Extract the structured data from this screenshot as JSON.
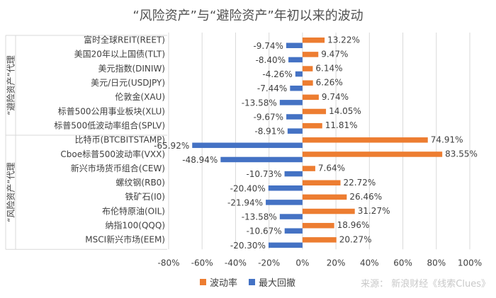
{
  "title": "“风险资产”与“避险资产”年初以来的波动",
  "source": "来源： 新浪财经《线索Clues》",
  "colors": {
    "volatility": "#ED7D31",
    "drawdown": "#4472C4",
    "grid": "#d9d9d9"
  },
  "chart_data": {
    "type": "bar",
    "orientation": "horizontal",
    "groups": [
      {
        "label": "“避险资产”代理",
        "categories": [
          "富时全球REIT(REET)",
          "美国20年以上国债(TLT)",
          "美元指数(DINIW)",
          "美元/日元(USDJPY)",
          "伦敦金(XAU)",
          "标普500公用事业板块(XLU)",
          "标普500低波动率组合(SPLV)"
        ]
      },
      {
        "label": "“风险资产”代理",
        "categories": [
          "比特币(BTCBITSTAMP)",
          "Cboe标普500波动率(VXX)",
          "新兴市场货币组合(CEW)",
          "螺纹钢(RB0)",
          "铁矿石(I0)",
          "布伦特原油(OIL)",
          "纳指100(QQQ)",
          "MSCI新兴市场(EEM)"
        ]
      }
    ],
    "categories": [
      "富时全球REIT(REET)",
      "美国20年以上国债(TLT)",
      "美元指数(DINIW)",
      "美元/日元(USDJPY)",
      "伦敦金(XAU)",
      "标普500公用事业板块(XLU)",
      "标普500低波动率组合(SPLV)",
      "比特币(BTCBITSTAMP)",
      "Cboe标普500波动率(VXX)",
      "新兴市场货币组合(CEW)",
      "螺纹钢(RB0)",
      "铁矿石(I0)",
      "布伦特原油(OIL)",
      "纳指100(QQQ)",
      "MSCI新兴市场(EEM)"
    ],
    "series": [
      {
        "name": "波动率",
        "values": [
          13.22,
          9.47,
          6.14,
          6.26,
          9.74,
          14.05,
          11.81,
          74.91,
          83.55,
          7.64,
          22.72,
          26.46,
          31.27,
          18.96,
          20.27
        ],
        "labels": [
          "13.22%",
          "9.47%",
          "6.14%",
          "6.26%",
          "9.74%",
          "14.05%",
          "11.81%",
          "74.91%",
          "83.55%",
          "7.64%",
          "22.72%",
          "26.46%",
          "31.27%",
          "18.96%",
          "20.27%"
        ]
      },
      {
        "name": "最大回撤",
        "values": [
          -9.74,
          -8.4,
          -4.26,
          -7.44,
          -13.58,
          -9.67,
          -8.91,
          -65.92,
          -48.94,
          -10.73,
          -20.4,
          -21.94,
          -13.58,
          -10.67,
          -20.3
        ],
        "labels": [
          "-9.74%",
          "-8.40%",
          "-4.26%",
          "-7.44%",
          "-13.58%",
          "-9.67%",
          "-8.91%",
          "-65.92%",
          "-48.94%",
          "-10.73%",
          "-20.40%",
          "-21.94%",
          "-13.58%",
          "-10.67%",
          "-20.30%"
        ]
      }
    ],
    "xlim": [
      -80,
      100
    ],
    "xticks": [
      -80,
      -60,
      -40,
      -20,
      0,
      20,
      40,
      60,
      80,
      100
    ],
    "xtick_labels": [
      "-80%",
      "-60%",
      "-40%",
      "-20%",
      "0%",
      "20%",
      "40%",
      "60%",
      "80%",
      "100%"
    ],
    "grid": true,
    "legend": "bottom"
  }
}
